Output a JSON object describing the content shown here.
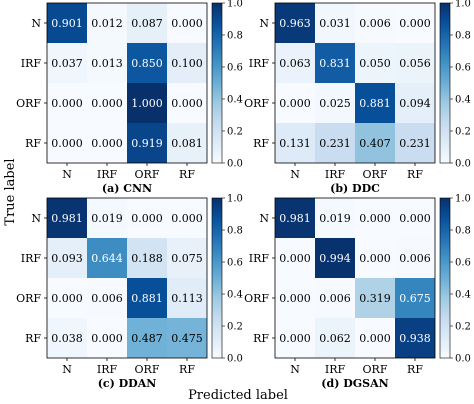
{
  "figure": {
    "ylabel": "True label",
    "xlabel": "Predicted label"
  },
  "chart_data": [
    {
      "type": "heatmap",
      "caption": "(a) CNN",
      "rows": [
        "N",
        "IRF",
        "ORF",
        "RF"
      ],
      "cols": [
        "N",
        "IRF",
        "ORF",
        "RF"
      ],
      "values": [
        [
          0.901,
          0.012,
          0.087,
          0.0
        ],
        [
          0.037,
          0.013,
          0.85,
          0.1
        ],
        [
          0.0,
          0.0,
          1.0,
          0.0
        ],
        [
          0.0,
          0.0,
          0.919,
          0.081
        ]
      ],
      "colorbar": {
        "range": [
          0,
          1
        ],
        "ticks": [
          "0.0",
          "0.2",
          "0.4",
          "0.6",
          "0.8",
          "1.0"
        ]
      }
    },
    {
      "type": "heatmap",
      "caption": "(b) DDC",
      "rows": [
        "N",
        "IRF",
        "ORF",
        "RF"
      ],
      "cols": [
        "N",
        "IRF",
        "ORF",
        "RF"
      ],
      "values": [
        [
          0.963,
          0.031,
          0.006,
          0.0
        ],
        [
          0.063,
          0.831,
          0.05,
          0.056
        ],
        [
          0.0,
          0.025,
          0.881,
          0.094
        ],
        [
          0.131,
          0.231,
          0.407,
          0.231
        ]
      ],
      "colorbar": {
        "range": [
          0,
          1
        ],
        "ticks": [
          "0.0",
          "0.2",
          "0.4",
          "0.6",
          "0.8",
          "1.0"
        ]
      }
    },
    {
      "type": "heatmap",
      "caption": "(c) DDAN",
      "rows": [
        "N",
        "IRF",
        "ORF",
        "RF"
      ],
      "cols": [
        "N",
        "IRF",
        "ORF",
        "RF"
      ],
      "values": [
        [
          0.981,
          0.019,
          0.0,
          0.0
        ],
        [
          0.093,
          0.644,
          0.188,
          0.075
        ],
        [
          0.0,
          0.006,
          0.881,
          0.113
        ],
        [
          0.038,
          0.0,
          0.487,
          0.475
        ]
      ],
      "colorbar": {
        "range": [
          0,
          1
        ],
        "ticks": [
          "0.0",
          "0.2",
          "0.4",
          "0.6",
          "0.8",
          "1.0"
        ]
      }
    },
    {
      "type": "heatmap",
      "caption": "(d) DGSAN",
      "rows": [
        "N",
        "IRF",
        "ORF",
        "RF"
      ],
      "cols": [
        "N",
        "IRF",
        "ORF",
        "RF"
      ],
      "values": [
        [
          0.981,
          0.019,
          0.0,
          0.0
        ],
        [
          0.0,
          0.994,
          0.0,
          0.006
        ],
        [
          0.0,
          0.006,
          0.319,
          0.675
        ],
        [
          0.0,
          0.062,
          0.0,
          0.938
        ]
      ],
      "colorbar": {
        "range": [
          0,
          1
        ],
        "ticks": [
          "0.0",
          "0.2",
          "0.4",
          "0.6",
          "0.8",
          "1.0"
        ]
      }
    }
  ]
}
